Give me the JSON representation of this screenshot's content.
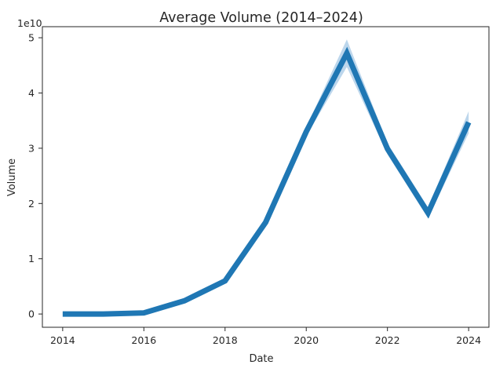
{
  "chart_data": {
    "type": "line",
    "title": "Average Volume (2014–2024)",
    "xlabel": "Date",
    "ylabel": "Volume",
    "y_offset_label": "1e10",
    "x": [
      2014,
      2015,
      2016,
      2017,
      2018,
      2019,
      2020,
      2021,
      2022,
      2023,
      2024
    ],
    "series": [
      {
        "values": [
          0.0,
          0.0,
          0.02,
          0.24,
          0.6,
          1.66,
          3.3,
          4.72,
          2.99,
          1.83,
          3.47
        ],
        "ci_upper": [
          0.01,
          0.01,
          0.03,
          0.27,
          0.63,
          1.7,
          3.38,
          4.97,
          3.09,
          1.93,
          3.67
        ],
        "ci_lower": [
          0.0,
          0.0,
          0.01,
          0.21,
          0.57,
          1.62,
          3.22,
          4.47,
          2.89,
          1.73,
          3.27
        ],
        "color": "#1f77b4",
        "band_color": "#a6c8e6"
      }
    ],
    "xticks": [
      "2014",
      "2016",
      "2018",
      "2020",
      "2022",
      "2024"
    ],
    "xtick_values": [
      2014,
      2016,
      2018,
      2020,
      2022,
      2024
    ],
    "yticks": [
      "0",
      "1",
      "2",
      "3",
      "4",
      "5"
    ],
    "ytick_values": [
      0,
      1,
      2,
      3,
      4,
      5
    ],
    "xlim": [
      2013.5,
      2024.5
    ],
    "ylim": [
      -0.24,
      5.2
    ],
    "grid": false
  }
}
